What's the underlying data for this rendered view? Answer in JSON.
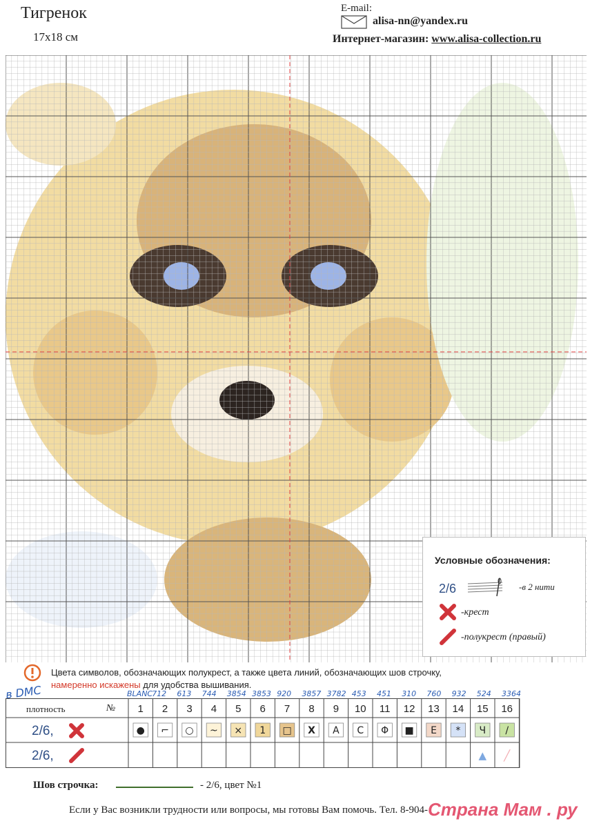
{
  "header": {
    "title": "Тигренок",
    "size": "17x18 см",
    "email_label": "E-mail:",
    "email": "alisa-nn@yandex.ru",
    "shop_label": "Интернет-магазин:",
    "shop_url": "www.alisa-collection.ru"
  },
  "legend": {
    "title": "Условные обозначения:",
    "density": "2/6",
    "threads": "-в 2 нити",
    "cross_label": "-крест",
    "half_label": "-полукрест (правый)"
  },
  "note": {
    "line1": "Цвета символов, обозначающих полукрест, а также цвета линий, обозначающих шов строчку,",
    "line2_red": "намеренно искажены",
    "line2_rest": " для удобства вышивания."
  },
  "dmc": {
    "label": "в DMC",
    "codes": [
      "BLANC",
      "712",
      "613",
      "744",
      "3854",
      "3853",
      "920",
      "3857",
      "3782",
      "453",
      "451",
      "310",
      "760",
      "932",
      "524",
      "3364"
    ]
  },
  "table": {
    "col_header": "№",
    "density_header": "плотность",
    "row1_label": "2/6,",
    "row2_label": "2/6,",
    "numbers": [
      "1",
      "2",
      "3",
      "4",
      "5",
      "6",
      "7",
      "8",
      "9",
      "10",
      "11",
      "12",
      "13",
      "14",
      "15",
      "16"
    ],
    "symbols": [
      "●",
      "⌐",
      "○",
      "~",
      "×",
      "1",
      "□",
      "X",
      "A",
      "C",
      "Φ",
      "■",
      "E",
      "*",
      "Ч",
      "/"
    ],
    "symbol_colors": [
      "#ffffff",
      "#ffffff",
      "#ffffff",
      "#fdf3d8",
      "#f6e4b4",
      "#f0d79a",
      "#e6c48c",
      "#ffffff",
      "#ffffff",
      "#ffffff",
      "#ffffff",
      "#ffffff",
      "#f3d8c8",
      "#d5e2f7",
      "#d8ebc6",
      "#c9e3a3"
    ],
    "half_marks": [
      "▲",
      "╱"
    ],
    "half_colors": [
      "#7ea8e0",
      "#f2aab0"
    ]
  },
  "stitch": {
    "label": "Шов строчка:",
    "text": "- 2/6, цвет №1"
  },
  "footer": "Если у Вас возникли трудности или вопросы, мы готовы Вам помочь. Тел. 8-904-",
  "watermark": "Страна Мам . ру",
  "colors": {
    "grid_line": "#b8b8b8",
    "grid_major": "#555555",
    "center_mark": "#e04040",
    "red_cross": "#d0343a",
    "stitch_green": "#3f6e2b"
  }
}
